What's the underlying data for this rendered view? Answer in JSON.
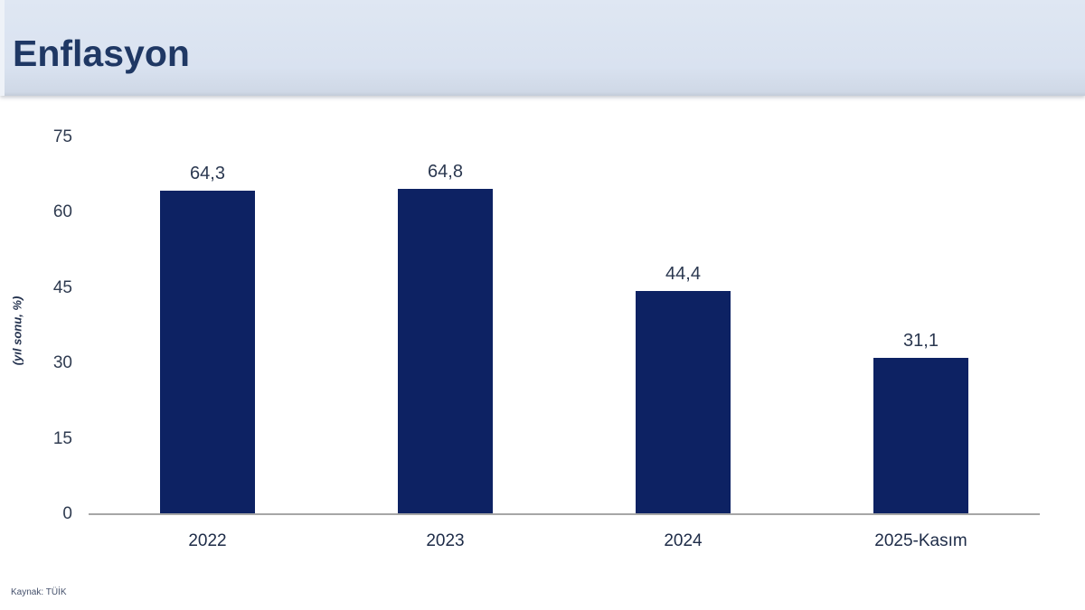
{
  "header": {
    "title": "Enflasyon"
  },
  "source": "Kaynak: TÜİK",
  "chart_data": {
    "type": "bar",
    "title": "Enflasyon",
    "categories": [
      "2022",
      "2023",
      "2024",
      "2025-Kasım"
    ],
    "values": [
      64.3,
      64.8,
      44.4,
      31.1
    ],
    "value_labels": [
      "64,3",
      "64,8",
      "44,4",
      "31,1"
    ],
    "xlabel": "",
    "ylabel": "(yıl sonu, %)",
    "ylim": [
      0,
      75
    ],
    "yticks": [
      0,
      15,
      30,
      45,
      60,
      75
    ],
    "grid": false,
    "legend": false,
    "bar_color": "#0d2263",
    "axis_color": "#a6a6a6",
    "label_color": "#2b3850"
  }
}
